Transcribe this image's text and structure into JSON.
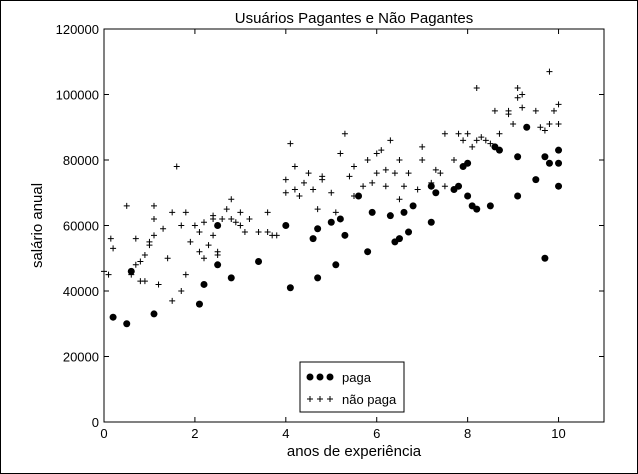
{
  "chart_data": {
    "type": "scatter",
    "title": "Usuários Pagantes e Não Pagantes",
    "xlabel": "anos de experiência",
    "ylabel": "salário anual",
    "xlim": [
      0,
      11
    ],
    "ylim": [
      0,
      120000
    ],
    "xticks": [
      0,
      2,
      4,
      6,
      8,
      10
    ],
    "yticks": [
      0,
      20000,
      40000,
      60000,
      80000,
      100000,
      120000
    ],
    "grid": false,
    "legend_position": "bottom-center",
    "series": [
      {
        "name": "paga",
        "marker": "circle",
        "color": "#000000",
        "points": [
          [
            0.2,
            32000
          ],
          [
            0.5,
            30000
          ],
          [
            0.6,
            46000
          ],
          [
            1.1,
            33000
          ],
          [
            2.1,
            36000
          ],
          [
            2.2,
            42000
          ],
          [
            2.5,
            48000
          ],
          [
            2.5,
            60000
          ],
          [
            2.8,
            44000
          ],
          [
            3.4,
            49000
          ],
          [
            4.1,
            41000
          ],
          [
            4.0,
            60000
          ],
          [
            4.6,
            56000
          ],
          [
            4.7,
            44000
          ],
          [
            4.7,
            59000
          ],
          [
            5.0,
            61000
          ],
          [
            5.1,
            48000
          ],
          [
            5.2,
            62000
          ],
          [
            5.3,
            57000
          ],
          [
            5.8,
            52000
          ],
          [
            5.6,
            69000
          ],
          [
            5.9,
            64000
          ],
          [
            6.3,
            63000
          ],
          [
            6.4,
            55000
          ],
          [
            6.5,
            56000
          ],
          [
            6.6,
            64000
          ],
          [
            6.7,
            58000
          ],
          [
            6.8,
            66000
          ],
          [
            7.2,
            61000
          ],
          [
            7.2,
            72000
          ],
          [
            7.3,
            70000
          ],
          [
            7.7,
            71000
          ],
          [
            7.8,
            72000
          ],
          [
            7.9,
            78000
          ],
          [
            8.0,
            79000
          ],
          [
            8.0,
            69000
          ],
          [
            8.1,
            66000
          ],
          [
            8.2,
            65000
          ],
          [
            8.5,
            66000
          ],
          [
            8.6,
            84000
          ],
          [
            8.7,
            83000
          ],
          [
            9.1,
            81000
          ],
          [
            9.1,
            69000
          ],
          [
            9.3,
            90000
          ],
          [
            9.5,
            74000
          ],
          [
            9.7,
            81000
          ],
          [
            9.8,
            79000
          ],
          [
            9.7,
            50000
          ],
          [
            10.0,
            83000
          ],
          [
            10.0,
            79000
          ],
          [
            10.0,
            72000
          ]
        ]
      },
      {
        "name": "não paga",
        "marker": "plus",
        "color": "#000000",
        "points": [
          [
            0.0,
            46000
          ],
          [
            0.1,
            45000
          ],
          [
            0.15,
            56000
          ],
          [
            0.2,
            53000
          ],
          [
            0.5,
            66000
          ],
          [
            0.6,
            45000
          ],
          [
            0.7,
            56000
          ],
          [
            0.7,
            48000
          ],
          [
            0.8,
            49000
          ],
          [
            0.8,
            43000
          ],
          [
            0.9,
            43000
          ],
          [
            0.9,
            51000
          ],
          [
            1.0,
            54000
          ],
          [
            1.0,
            55000
          ],
          [
            1.1,
            62000
          ],
          [
            1.1,
            66000
          ],
          [
            1.1,
            57000
          ],
          [
            1.2,
            42000
          ],
          [
            1.3,
            59000
          ],
          [
            1.4,
            50000
          ],
          [
            1.5,
            64000
          ],
          [
            1.5,
            37000
          ],
          [
            1.6,
            78000
          ],
          [
            1.7,
            60000
          ],
          [
            1.7,
            40000
          ],
          [
            1.8,
            64000
          ],
          [
            1.8,
            45000
          ],
          [
            1.9,
            55000
          ],
          [
            2.0,
            60000
          ],
          [
            2.1,
            58000
          ],
          [
            2.1,
            52000
          ],
          [
            2.2,
            50000
          ],
          [
            2.2,
            61000
          ],
          [
            2.3,
            54000
          ],
          [
            2.4,
            63000
          ],
          [
            2.4,
            62000
          ],
          [
            2.4,
            57000
          ],
          [
            2.5,
            52000
          ],
          [
            2.5,
            51000
          ],
          [
            2.6,
            62000
          ],
          [
            2.7,
            65000
          ],
          [
            2.8,
            68000
          ],
          [
            2.8,
            62000
          ],
          [
            2.9,
            61000
          ],
          [
            3.0,
            60000
          ],
          [
            3.0,
            64000
          ],
          [
            3.1,
            58000
          ],
          [
            3.2,
            62000
          ],
          [
            3.4,
            58000
          ],
          [
            3.6,
            58000
          ],
          [
            3.6,
            64000
          ],
          [
            3.7,
            57000
          ],
          [
            3.8,
            57000
          ],
          [
            4.0,
            74000
          ],
          [
            4.0,
            70000
          ],
          [
            4.1,
            85000
          ],
          [
            4.2,
            71000
          ],
          [
            4.2,
            78000
          ],
          [
            4.3,
            69000
          ],
          [
            4.4,
            73000
          ],
          [
            4.5,
            76000
          ],
          [
            4.6,
            71000
          ],
          [
            4.7,
            65000
          ],
          [
            4.8,
            74000
          ],
          [
            4.8,
            75000
          ],
          [
            5.0,
            70000
          ],
          [
            5.1,
            64000
          ],
          [
            5.2,
            82000
          ],
          [
            5.3,
            88000
          ],
          [
            5.4,
            75000
          ],
          [
            5.5,
            78000
          ],
          [
            5.5,
            69000
          ],
          [
            5.7,
            72000
          ],
          [
            5.8,
            80000
          ],
          [
            5.9,
            73000
          ],
          [
            6.0,
            76000
          ],
          [
            6.0,
            82000
          ],
          [
            6.1,
            83000
          ],
          [
            6.2,
            77000
          ],
          [
            6.2,
            72000
          ],
          [
            6.3,
            86000
          ],
          [
            6.4,
            76000
          ],
          [
            6.5,
            80000
          ],
          [
            6.5,
            68000
          ],
          [
            6.6,
            72000
          ],
          [
            6.7,
            76000
          ],
          [
            6.9,
            71000
          ],
          [
            7.0,
            84000
          ],
          [
            7.0,
            80000
          ],
          [
            7.2,
            73000
          ],
          [
            7.3,
            77000
          ],
          [
            7.4,
            76000
          ],
          [
            7.5,
            72000
          ],
          [
            7.5,
            88000
          ],
          [
            7.7,
            80000
          ],
          [
            7.8,
            88000
          ],
          [
            7.9,
            86000
          ],
          [
            8.0,
            88000
          ],
          [
            8.1,
            84000
          ],
          [
            8.2,
            102000
          ],
          [
            8.2,
            86000
          ],
          [
            8.3,
            87000
          ],
          [
            8.4,
            86000
          ],
          [
            8.5,
            85000
          ],
          [
            8.6,
            95000
          ],
          [
            8.7,
            88000
          ],
          [
            8.9,
            95000
          ],
          [
            8.9,
            94000
          ],
          [
            9.0,
            91000
          ],
          [
            9.1,
            99000
          ],
          [
            9.1,
            102000
          ],
          [
            9.2,
            100000
          ],
          [
            9.2,
            96000
          ],
          [
            9.5,
            95000
          ],
          [
            9.6,
            90000
          ],
          [
            9.7,
            89000
          ],
          [
            9.8,
            107000
          ],
          [
            9.8,
            91000
          ],
          [
            9.9,
            95000
          ],
          [
            10.0,
            91000
          ],
          [
            10.0,
            97000
          ]
        ]
      }
    ]
  }
}
